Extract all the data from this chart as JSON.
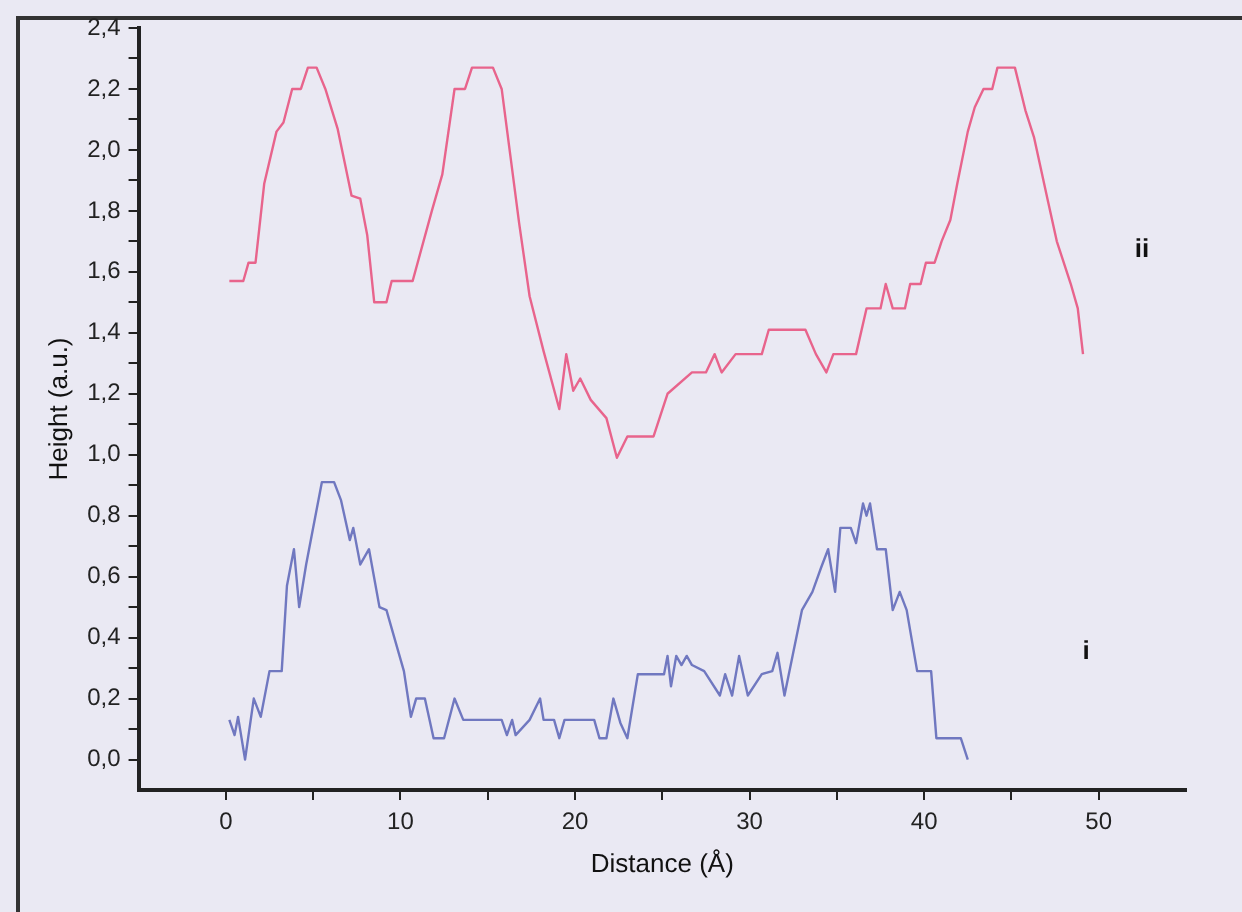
{
  "chart_data": {
    "type": "line",
    "xlabel": "Distance (Å)",
    "ylabel": "Height (a.u.)",
    "xlim": [
      -5,
      55
    ],
    "ylim": [
      -0.1,
      2.4
    ],
    "xticks": [
      0,
      {
        "value": 5,
        "label": null
      },
      10,
      {
        "value": 15,
        "label": null
      },
      20,
      {
        "value": 25,
        "label": null
      },
      30,
      {
        "value": 35,
        "label": null
      },
      40,
      {
        "value": 45,
        "label": null
      },
      50
    ],
    "yticks": [
      {
        "value": 0,
        "label": "0,0"
      },
      {
        "value": 0.1,
        "label": null
      },
      {
        "value": 0.2,
        "label": "0,2"
      },
      {
        "value": 0.3,
        "label": null
      },
      {
        "value": 0.4,
        "label": "0,4"
      },
      {
        "value": 0.5,
        "label": null
      },
      {
        "value": 0.6,
        "label": "0,6"
      },
      {
        "value": 0.7,
        "label": null
      },
      {
        "value": 0.8,
        "label": "0,8"
      },
      {
        "value": 0.9,
        "label": null
      },
      {
        "value": 1.0,
        "label": "1,0"
      },
      {
        "value": 1.1,
        "label": null
      },
      {
        "value": 1.2,
        "label": "1,2"
      },
      {
        "value": 1.3,
        "label": null
      },
      {
        "value": 1.4,
        "label": "1,4"
      },
      {
        "value": 1.5,
        "label": null
      },
      {
        "value": 1.6,
        "label": "1,6"
      },
      {
        "value": 1.7,
        "label": null
      },
      {
        "value": 1.8,
        "label": "1,8"
      },
      {
        "value": 1.9,
        "label": null
      },
      {
        "value": 2.0,
        "label": "2,0"
      },
      {
        "value": 2.1,
        "label": null
      },
      {
        "value": 2.2,
        "label": "2,2"
      },
      {
        "value": 2.3,
        "label": null
      },
      {
        "value": 2.4,
        "label": "2,4"
      }
    ],
    "grid": false,
    "legend": false,
    "marker": "none",
    "line_style": "solid",
    "series": [
      {
        "name": "ii",
        "color": "#e8648c",
        "x": [
          0.2,
          1.0,
          1.3,
          1.7,
          2.2,
          2.9,
          3.3,
          3.8,
          4.3,
          4.7,
          5.2,
          5.7,
          6.4,
          6.8,
          7.2,
          7.7,
          8.1,
          8.5,
          9.2,
          9.5,
          10.7,
          11.8,
          12.4,
          13.1,
          13.7,
          14.1,
          15.3,
          15.8,
          16.8,
          17.4,
          18.2,
          19.1,
          19.5,
          19.9,
          20.3,
          20.9,
          21.8,
          22.4,
          23.0,
          24.5,
          25.3,
          26.7,
          27.5,
          28.0,
          28.4,
          29.2,
          30.7,
          31.1,
          33.2,
          33.8,
          34.4,
          34.8,
          36.1,
          36.7,
          37.5,
          37.8,
          38.2,
          38.9,
          39.2,
          39.8,
          40.1,
          40.6,
          41.0,
          41.5,
          41.9,
          42.5,
          42.9,
          43.4,
          43.9,
          44.2,
          45.2,
          45.8,
          46.3,
          47.1,
          47.6,
          48.4,
          48.8,
          49.1
        ],
        "values": [
          1.57,
          1.57,
          1.63,
          1.63,
          1.89,
          2.06,
          2.09,
          2.2,
          2.2,
          2.27,
          2.27,
          2.2,
          2.07,
          1.96,
          1.85,
          1.84,
          1.72,
          1.5,
          1.5,
          1.57,
          1.57,
          1.8,
          1.92,
          2.2,
          2.2,
          2.27,
          2.27,
          2.2,
          1.76,
          1.52,
          1.34,
          1.15,
          1.33,
          1.21,
          1.25,
          1.18,
          1.12,
          0.99,
          1.06,
          1.06,
          1.2,
          1.27,
          1.27,
          1.33,
          1.27,
          1.33,
          1.33,
          1.41,
          1.41,
          1.33,
          1.27,
          1.33,
          1.33,
          1.48,
          1.48,
          1.56,
          1.48,
          1.48,
          1.56,
          1.56,
          1.63,
          1.63,
          1.7,
          1.77,
          1.89,
          2.06,
          2.14,
          2.2,
          2.2,
          2.27,
          2.27,
          2.13,
          2.04,
          1.83,
          1.7,
          1.56,
          1.48,
          1.33
        ]
      },
      {
        "name": "i",
        "color": "#7078c0",
        "x": [
          0.2,
          0.5,
          0.7,
          1.1,
          1.6,
          2.0,
          2.5,
          3.2,
          3.5,
          3.9,
          4.2,
          4.6,
          5.5,
          6.2,
          6.6,
          7.1,
          7.3,
          7.7,
          8.2,
          8.8,
          9.2,
          9.9,
          10.2,
          10.6,
          10.9,
          11.4,
          11.9,
          12.5,
          13.1,
          13.6,
          15.8,
          16.1,
          16.4,
          16.6,
          17.4,
          18.0,
          18.2,
          18.8,
          19.1,
          19.4,
          21.1,
          21.4,
          21.8,
          22.2,
          22.6,
          23.0,
          23.6,
          25.1,
          25.3,
          25.5,
          25.8,
          26.1,
          26.4,
          26.7,
          27.4,
          28.3,
          28.6,
          29.0,
          29.4,
          29.9,
          30.7,
          31.3,
          31.6,
          32.0,
          32.5,
          33.0,
          33.6,
          34.1,
          34.5,
          34.9,
          35.2,
          35.8,
          36.1,
          36.5,
          36.7,
          36.9,
          37.3,
          37.8,
          38.2,
          38.6,
          39.0,
          39.6,
          40.4,
          40.7,
          42.1,
          42.5
        ],
        "values": [
          0.13,
          0.08,
          0.14,
          0.0,
          0.2,
          0.14,
          0.29,
          0.29,
          0.57,
          0.69,
          0.5,
          0.64,
          0.91,
          0.91,
          0.85,
          0.72,
          0.76,
          0.64,
          0.69,
          0.5,
          0.49,
          0.35,
          0.29,
          0.14,
          0.2,
          0.2,
          0.07,
          0.07,
          0.2,
          0.13,
          0.13,
          0.08,
          0.13,
          0.08,
          0.13,
          0.2,
          0.13,
          0.13,
          0.07,
          0.13,
          0.13,
          0.07,
          0.07,
          0.2,
          0.12,
          0.07,
          0.28,
          0.28,
          0.34,
          0.24,
          0.34,
          0.31,
          0.34,
          0.31,
          0.29,
          0.21,
          0.28,
          0.21,
          0.34,
          0.21,
          0.28,
          0.29,
          0.35,
          0.21,
          0.35,
          0.49,
          0.55,
          0.63,
          0.69,
          0.55,
          0.76,
          0.76,
          0.71,
          0.84,
          0.8,
          0.84,
          0.69,
          0.69,
          0.49,
          0.55,
          0.49,
          0.29,
          0.29,
          0.07,
          0.07,
          0.0
        ]
      }
    ]
  }
}
